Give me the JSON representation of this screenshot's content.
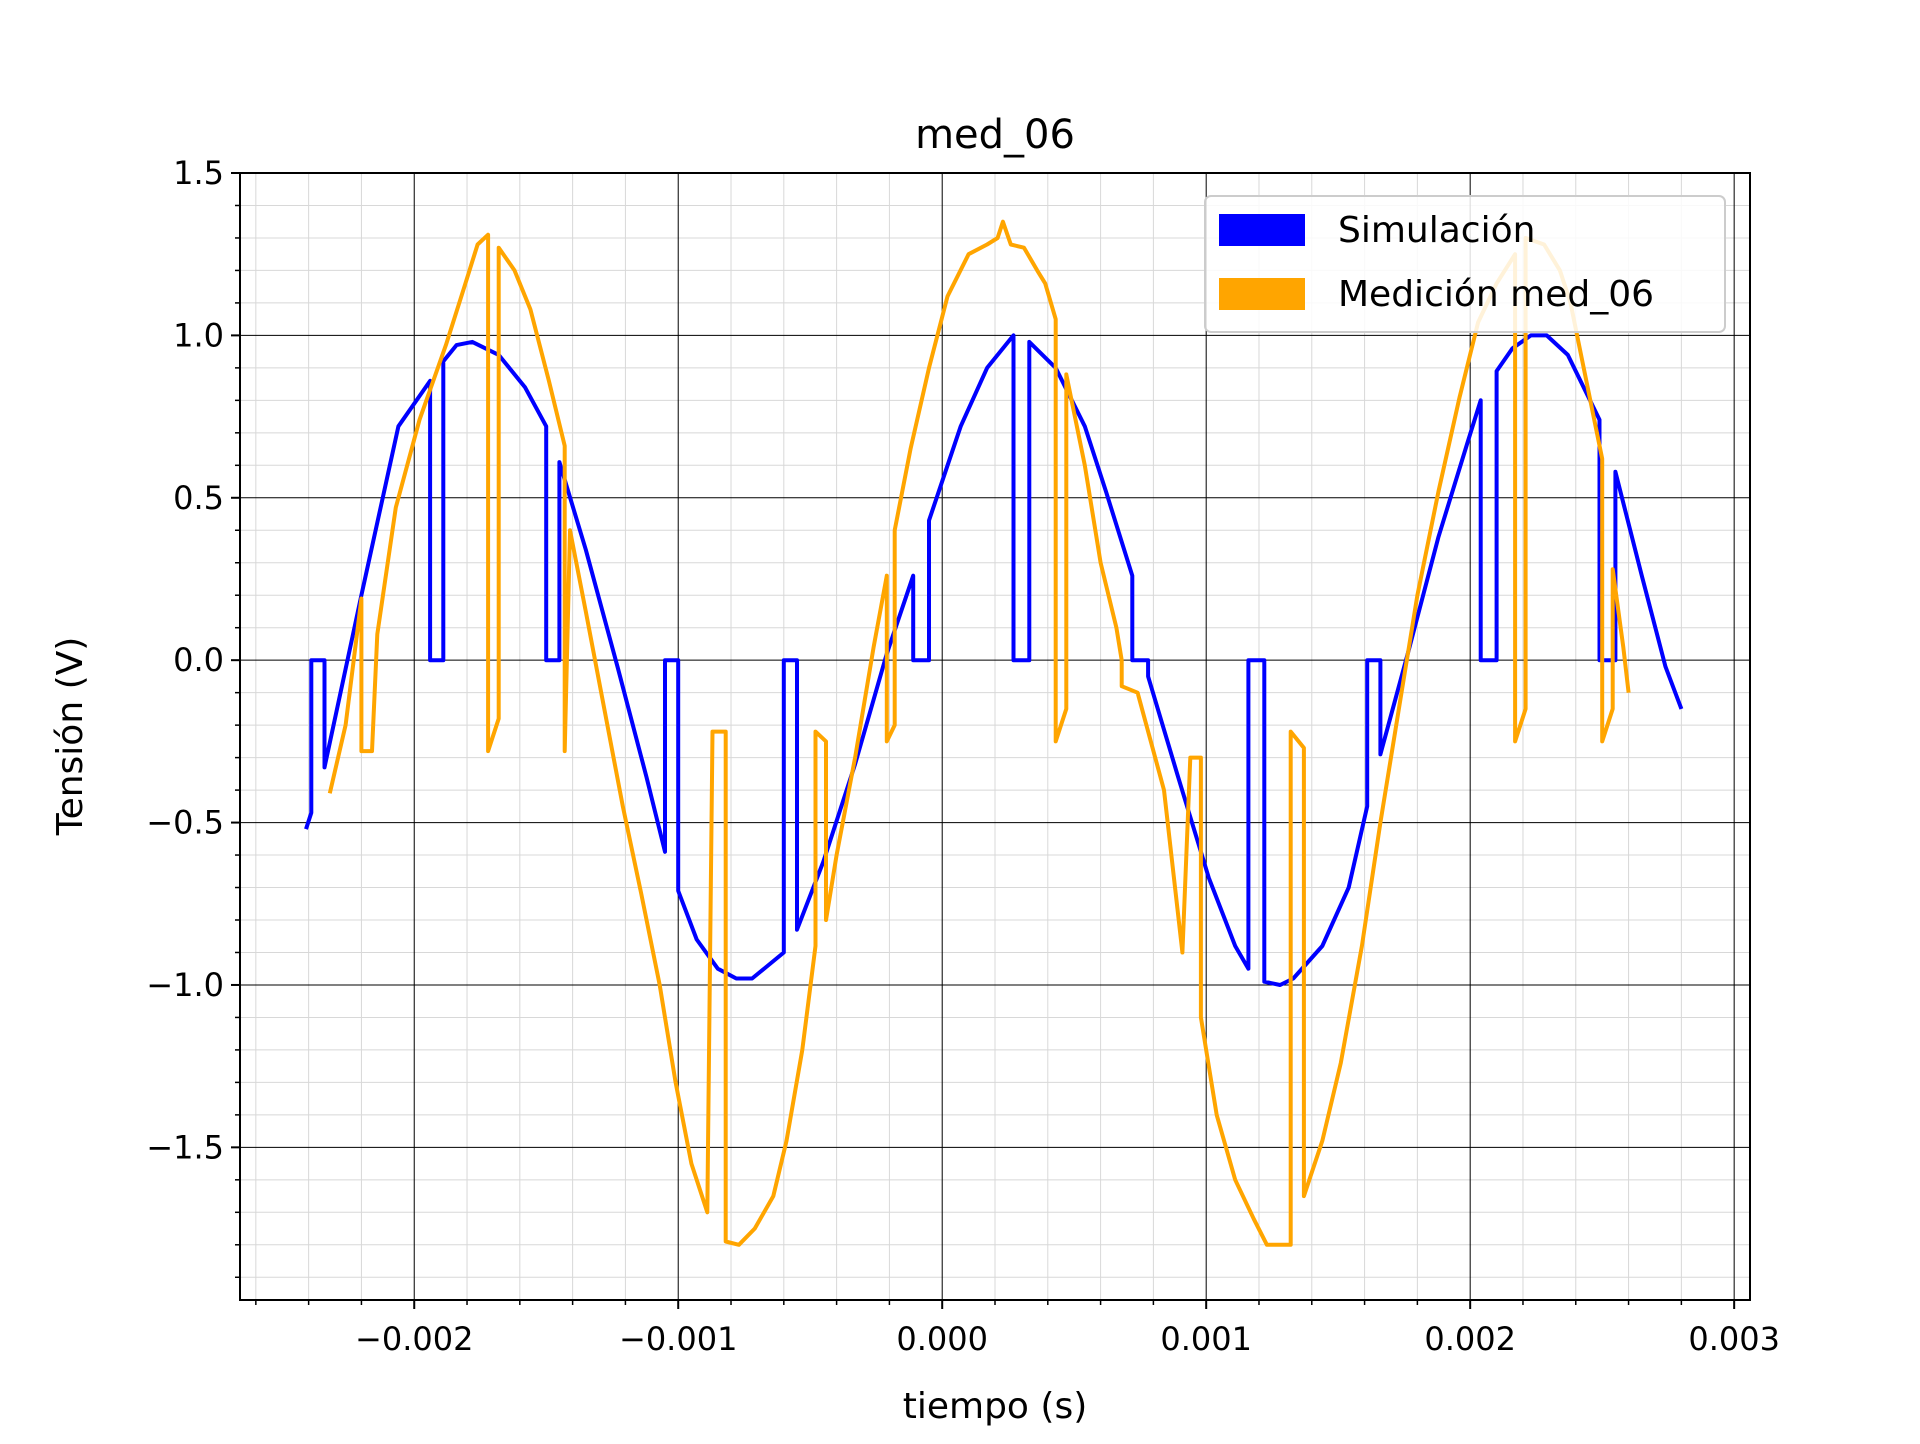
{
  "chart_data": {
    "type": "line",
    "title": "med_06",
    "xlabel": "tiempo (s)",
    "ylabel": "Tensión (V)",
    "xlim": [
      -0.00266,
      0.00306
    ],
    "ylim": [
      -1.97,
      1.5
    ],
    "x_ticks": [
      -0.002,
      -0.001,
      0.0,
      0.001,
      0.002,
      0.003
    ],
    "x_tick_labels": [
      "−0.002",
      "−0.001",
      "0.000",
      "0.001",
      "0.002",
      "0.003"
    ],
    "y_ticks": [
      -1.5,
      -1.0,
      -0.5,
      0.0,
      0.5,
      1.0,
      1.5
    ],
    "y_tick_labels": [
      "−1.5",
      "−1.0",
      "−0.5",
      "0.0",
      "0.5",
      "1.0",
      "1.5"
    ],
    "grid": true,
    "minor_grid": true,
    "legend_position": "top-right",
    "series": [
      {
        "name": "Simulación",
        "color": "#0000ff",
        "points": [
          [
            -0.00241,
            -0.52
          ],
          [
            -0.00239,
            -0.47
          ],
          [
            -0.00239,
            0.0
          ],
          [
            -0.00234,
            0.0
          ],
          [
            -0.00234,
            -0.33
          ],
          [
            -0.0022,
            0.2
          ],
          [
            -0.00206,
            0.72
          ],
          [
            -0.00194,
            0.86
          ],
          [
            -0.00194,
            0.0
          ],
          [
            -0.00189,
            0.0
          ],
          [
            -0.00189,
            0.92
          ],
          [
            -0.00184,
            0.97
          ],
          [
            -0.00178,
            0.98
          ],
          [
            -0.00168,
            0.94
          ],
          [
            -0.00158,
            0.84
          ],
          [
            -0.0015,
            0.72
          ],
          [
            -0.0015,
            0.0
          ],
          [
            -0.00145,
            0.0
          ],
          [
            -0.00145,
            0.61
          ],
          [
            -0.00135,
            0.34
          ],
          [
            -0.00123,
            -0.02
          ],
          [
            -0.00112,
            -0.36
          ],
          [
            -0.00105,
            -0.59
          ],
          [
            -0.00105,
            0.0
          ],
          [
            -0.001,
            0.0
          ],
          [
            -0.001,
            -0.71
          ],
          [
            -0.00093,
            -0.86
          ],
          [
            -0.00085,
            -0.95
          ],
          [
            -0.00078,
            -0.98
          ],
          [
            -0.00072,
            -0.98
          ],
          [
            -0.00066,
            -0.94
          ],
          [
            -0.0006,
            -0.9
          ],
          [
            -0.0006,
            0.0
          ],
          [
            -0.00055,
            0.0
          ],
          [
            -0.00055,
            -0.83
          ],
          [
            -0.00045,
            -0.62
          ],
          [
            -0.00033,
            -0.32
          ],
          [
            -0.00021,
            0.02
          ],
          [
            -0.00011,
            0.26
          ],
          [
            -0.00011,
            0.0
          ],
          [
            -5e-05,
            0.0
          ],
          [
            -5e-05,
            0.43
          ],
          [
            7e-05,
            0.72
          ],
          [
            0.00017,
            0.9
          ],
          [
            0.00026,
            0.99
          ],
          [
            0.00027,
            1.0
          ],
          [
            0.00027,
            0.0
          ],
          [
            0.00033,
            0.0
          ],
          [
            0.00033,
            0.98
          ],
          [
            0.00043,
            0.9
          ],
          [
            0.00054,
            0.72
          ],
          [
            0.00062,
            0.52
          ],
          [
            0.00072,
            0.26
          ],
          [
            0.00072,
            0.0
          ],
          [
            0.00078,
            0.0
          ],
          [
            0.00078,
            -0.05
          ],
          [
            0.00089,
            -0.35
          ],
          [
            0.00101,
            -0.67
          ],
          [
            0.00111,
            -0.88
          ],
          [
            0.00116,
            -0.95
          ],
          [
            0.00116,
            0.0
          ],
          [
            0.00122,
            0.0
          ],
          [
            0.00122,
            -0.99
          ],
          [
            0.00128,
            -1.0
          ],
          [
            0.00133,
            -0.98
          ],
          [
            0.00144,
            -0.88
          ],
          [
            0.00154,
            -0.7
          ],
          [
            0.00161,
            -0.45
          ],
          [
            0.00161,
            0.0
          ],
          [
            0.00166,
            0.0
          ],
          [
            0.00166,
            -0.29
          ],
          [
            0.00177,
            0.04
          ],
          [
            0.00188,
            0.38
          ],
          [
            0.00199,
            0.67
          ],
          [
            0.00204,
            0.8
          ],
          [
            0.00204,
            0.0
          ],
          [
            0.0021,
            0.0
          ],
          [
            0.0021,
            0.89
          ],
          [
            0.00216,
            0.96
          ],
          [
            0.00223,
            1.0
          ],
          [
            0.00229,
            1.0
          ],
          [
            0.00237,
            0.94
          ],
          [
            0.00249,
            0.74
          ],
          [
            0.00249,
            0.0
          ],
          [
            0.00255,
            0.0
          ],
          [
            0.00255,
            0.58
          ],
          [
            0.00265,
            0.26
          ],
          [
            0.00274,
            -0.02
          ],
          [
            0.0028,
            -0.15
          ]
        ]
      },
      {
        "name": "Medición med_06",
        "color": "#ffa500",
        "points": [
          [
            -0.00232,
            -0.41
          ],
          [
            -0.00226,
            -0.2
          ],
          [
            -0.0022,
            0.19
          ],
          [
            -0.0022,
            -0.28
          ],
          [
            -0.00216,
            -0.28
          ],
          [
            -0.00214,
            0.08
          ],
          [
            -0.00207,
            0.47
          ],
          [
            -0.00198,
            0.74
          ],
          [
            -0.00188,
            0.97
          ],
          [
            -0.00181,
            1.15
          ],
          [
            -0.00176,
            1.28
          ],
          [
            -0.00172,
            1.31
          ],
          [
            -0.00172,
            -0.28
          ],
          [
            -0.00168,
            -0.18
          ],
          [
            -0.00168,
            1.27
          ],
          [
            -0.00162,
            1.2
          ],
          [
            -0.00156,
            1.08
          ],
          [
            -0.00149,
            0.86
          ],
          [
            -0.00143,
            0.66
          ],
          [
            -0.00143,
            -0.28
          ],
          [
            -0.00141,
            0.4
          ],
          [
            -0.00135,
            0.15
          ],
          [
            -0.00128,
            -0.15
          ],
          [
            -0.00121,
            -0.45
          ],
          [
            -0.00114,
            -0.72
          ],
          [
            -0.00107,
            -1.0
          ],
          [
            -0.00101,
            -1.3
          ],
          [
            -0.00095,
            -1.55
          ],
          [
            -0.00089,
            -1.7
          ],
          [
            -0.00087,
            -0.22
          ],
          [
            -0.00082,
            -0.22
          ],
          [
            -0.00082,
            -1.79
          ],
          [
            -0.00077,
            -1.8
          ],
          [
            -0.00071,
            -1.75
          ],
          [
            -0.00064,
            -1.65
          ],
          [
            -0.00059,
            -1.48
          ],
          [
            -0.00053,
            -1.2
          ],
          [
            -0.00048,
            -0.88
          ],
          [
            -0.00048,
            -0.22
          ],
          [
            -0.00044,
            -0.25
          ],
          [
            -0.00044,
            -0.8
          ],
          [
            -0.0004,
            -0.6
          ],
          [
            -0.00033,
            -0.3
          ],
          [
            -0.00026,
            0.04
          ],
          [
            -0.00021,
            0.26
          ],
          [
            -0.00021,
            -0.25
          ],
          [
            -0.00018,
            -0.2
          ],
          [
            -0.00018,
            0.4
          ],
          [
            -0.00012,
            0.65
          ],
          [
            -5e-05,
            0.9
          ],
          [
            2e-05,
            1.12
          ],
          [
            0.0001,
            1.25
          ],
          [
            0.00017,
            1.28
          ],
          [
            0.00021,
            1.3
          ],
          [
            0.00023,
            1.35
          ],
          [
            0.00026,
            1.28
          ],
          [
            0.00031,
            1.27
          ],
          [
            0.00036,
            1.2
          ],
          [
            0.00039,
            1.16
          ],
          [
            0.00043,
            1.05
          ],
          [
            0.00043,
            -0.25
          ],
          [
            0.00047,
            -0.15
          ],
          [
            0.00047,
            0.88
          ],
          [
            0.00054,
            0.6
          ],
          [
            0.0006,
            0.3
          ],
          [
            0.00066,
            0.1
          ],
          [
            0.00068,
            0.0
          ],
          [
            0.00068,
            -0.08
          ],
          [
            0.00074,
            -0.1
          ],
          [
            0.00084,
            -0.4
          ],
          [
            0.00091,
            -0.9
          ],
          [
            0.00094,
            -0.3
          ],
          [
            0.00098,
            -0.3
          ],
          [
            0.00098,
            -1.1
          ],
          [
            0.00104,
            -1.4
          ],
          [
            0.00111,
            -1.6
          ],
          [
            0.00118,
            -1.72
          ],
          [
            0.00123,
            -1.8
          ],
          [
            0.00132,
            -1.8
          ],
          [
            0.00132,
            -0.22
          ],
          [
            0.00137,
            -0.27
          ],
          [
            0.00137,
            -1.65
          ],
          [
            0.00144,
            -1.48
          ],
          [
            0.00151,
            -1.24
          ],
          [
            0.00159,
            -0.88
          ],
          [
            0.00166,
            -0.5
          ],
          [
            0.00174,
            -0.1
          ],
          [
            0.0018,
            0.2
          ],
          [
            0.00188,
            0.52
          ],
          [
            0.00196,
            0.81
          ],
          [
            0.00203,
            1.04
          ],
          [
            0.0021,
            1.16
          ],
          [
            0.00217,
            1.25
          ],
          [
            0.00217,
            -0.25
          ],
          [
            0.00221,
            -0.15
          ],
          [
            0.00221,
            1.3
          ],
          [
            0.00228,
            1.28
          ],
          [
            0.00234,
            1.2
          ],
          [
            0.00238,
            1.1
          ],
          [
            0.00243,
            0.9
          ],
          [
            0.0025,
            0.62
          ],
          [
            0.0025,
            -0.25
          ],
          [
            0.00254,
            -0.15
          ],
          [
            0.00254,
            0.28
          ],
          [
            0.00258,
            0.04
          ],
          [
            0.0026,
            -0.1
          ]
        ]
      }
    ]
  }
}
